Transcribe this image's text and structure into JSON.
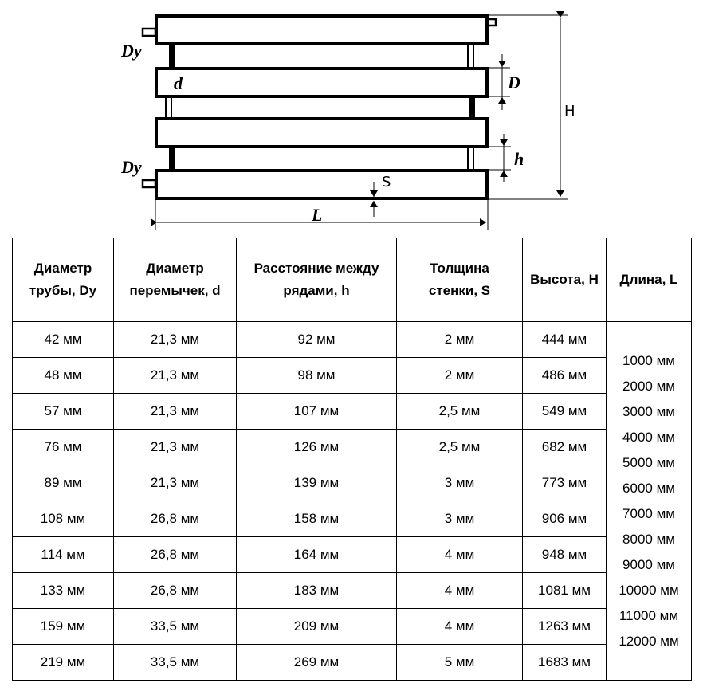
{
  "diagram": {
    "labels": {
      "Dy_top": "Dy",
      "d": "d",
      "D": "D",
      "h": "h",
      "Dy_bottom": "Dy",
      "S": "S",
      "L": "L",
      "H": "H"
    }
  },
  "table": {
    "headers": [
      "Диаметр трубы, Dy",
      "Диаметр перемычек, d",
      "Расстояние между рядами, h",
      "Толщина стенки, S",
      "Высота, H",
      "Длина, L"
    ],
    "rows": [
      [
        "42 мм",
        "21,3 мм",
        "92 мм",
        "2 мм",
        "444 мм"
      ],
      [
        "48 мм",
        "21,3 мм",
        "98 мм",
        "2 мм",
        "486 мм"
      ],
      [
        "57 мм",
        "21,3 мм",
        "107 мм",
        "2,5 мм",
        "549 мм"
      ],
      [
        "76 мм",
        "21,3 мм",
        "126 мм",
        "2,5 мм",
        "682 мм"
      ],
      [
        "89 мм",
        "21,3 мм",
        "139 мм",
        "3 мм",
        "773 мм"
      ],
      [
        "108 мм",
        "26,8 мм",
        "158 мм",
        "3 мм",
        "906 мм"
      ],
      [
        "114 мм",
        "26,8 мм",
        "164 мм",
        "4 мм",
        "948 мм"
      ],
      [
        "133 мм",
        "26,8 мм",
        "183 мм",
        "4 мм",
        "1081 мм"
      ],
      [
        "159 мм",
        "33,5 мм",
        "209 мм",
        "4 мм",
        "1263 мм"
      ],
      [
        "219 мм",
        "33,5 мм",
        "269 мм",
        "5 мм",
        "1683 мм"
      ]
    ],
    "lengths": [
      "1000 мм",
      "2000 мм",
      "3000 мм",
      "4000 мм",
      "5000 мм",
      "6000 мм",
      "7000 мм",
      "8000 мм",
      "9000 мм",
      "10000 мм",
      "11000 мм",
      "12000 мм"
    ]
  }
}
